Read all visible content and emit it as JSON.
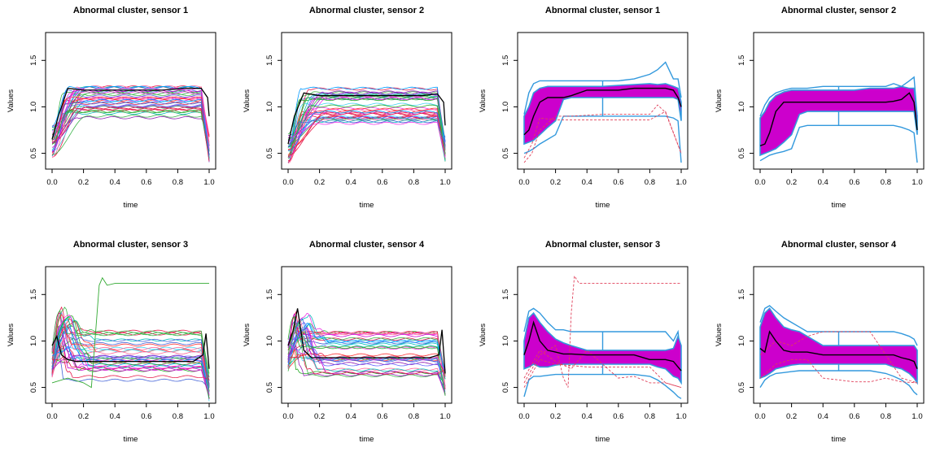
{
  "chart_data": [
    {
      "type": "line",
      "kind": "spaghetti",
      "title": "Abnormal cluster, sensor 1",
      "xlabel": "time",
      "ylabel": "Values",
      "xlim": [
        0,
        1
      ],
      "ylim": [
        0.33,
        1.8
      ],
      "xticks": [
        "0.0",
        "0.2",
        "0.4",
        "0.6",
        "0.8",
        "1.0"
      ],
      "yticks": [
        "0.5",
        "1.0",
        "1.5"
      ],
      "profile": {
        "start": 0.62,
        "level_min": 0.88,
        "level_max": 1.22,
        "rise": 0.15,
        "end": 0.55,
        "n": 34
      },
      "mean_line": {
        "x": [
          0,
          0.04,
          0.1,
          0.2,
          0.3,
          0.5,
          0.7,
          0.85,
          0.95,
          0.99,
          1.0
        ],
        "y": [
          0.65,
          0.9,
          1.2,
          1.18,
          1.18,
          1.18,
          1.18,
          1.2,
          1.2,
          1.1,
          0.9
        ]
      },
      "outliers": []
    },
    {
      "type": "line",
      "kind": "spaghetti",
      "title": "Abnormal cluster, sensor 2",
      "xlabel": "time",
      "ylabel": "Values",
      "xlim": [
        0,
        1
      ],
      "ylim": [
        0.33,
        1.8
      ],
      "xticks": [
        "0.0",
        "0.2",
        "0.4",
        "0.6",
        "0.8",
        "1.0"
      ],
      "yticks": [
        "0.5",
        "1.0",
        "1.5"
      ],
      "profile": {
        "start": 0.55,
        "level_min": 0.82,
        "level_max": 1.2,
        "rise": 0.17,
        "end": 0.55,
        "n": 34
      },
      "mean_line": {
        "x": [
          0,
          0.04,
          0.1,
          0.2,
          0.3,
          0.5,
          0.7,
          0.85,
          0.95,
          0.99,
          1.0
        ],
        "y": [
          0.6,
          0.9,
          1.15,
          1.12,
          1.12,
          1.12,
          1.12,
          1.12,
          1.14,
          1.05,
          0.8
        ]
      },
      "outliers": []
    },
    {
      "type": "line",
      "kind": "boxplot",
      "title": "Abnormal cluster, sensor 1",
      "xlabel": "time",
      "ylabel": "Values",
      "xlim": [
        0,
        1
      ],
      "ylim": [
        0.33,
        1.8
      ],
      "xticks": [
        "0.0",
        "0.2",
        "0.4",
        "0.6",
        "0.8",
        "1.0"
      ],
      "yticks": [
        "0.5",
        "1.0",
        "1.5"
      ],
      "x": [
        0,
        0.03,
        0.06,
        0.1,
        0.15,
        0.2,
        0.25,
        0.3,
        0.4,
        0.5,
        0.6,
        0.7,
        0.8,
        0.85,
        0.9,
        0.95,
        0.98,
        1.0
      ],
      "median": [
        0.7,
        0.75,
        0.9,
        1.05,
        1.1,
        1.1,
        1.1,
        1.12,
        1.18,
        1.18,
        1.18,
        1.2,
        1.2,
        1.2,
        1.2,
        1.18,
        1.1,
        1.0
      ],
      "box_low": [
        0.6,
        0.62,
        0.64,
        0.7,
        0.78,
        0.85,
        1.08,
        1.1,
        1.1,
        1.1,
        1.1,
        1.1,
        1.1,
        1.1,
        1.1,
        1.1,
        1.08,
        0.85
      ],
      "box_high": [
        0.9,
        1.0,
        1.15,
        1.2,
        1.22,
        1.22,
        1.22,
        1.22,
        1.22,
        1.22,
        1.23,
        1.24,
        1.25,
        1.24,
        1.25,
        1.22,
        1.2,
        1.05
      ],
      "fence_low": [
        0.5,
        0.52,
        0.55,
        0.6,
        0.65,
        0.7,
        0.9,
        0.9,
        0.9,
        0.9,
        0.9,
        0.9,
        0.9,
        0.9,
        0.9,
        0.88,
        0.85,
        0.4
      ],
      "fence_high": [
        0.92,
        1.15,
        1.25,
        1.28,
        1.28,
        1.28,
        1.28,
        1.28,
        1.28,
        1.28,
        1.28,
        1.3,
        1.35,
        1.4,
        1.48,
        1.3,
        1.3,
        1.1
      ],
      "whisker_x": 0.5,
      "outliers": [
        {
          "x": [
            0,
            0.05,
            0.1,
            0.2,
            0.3,
            0.5,
            0.7,
            0.8,
            0.9,
            1.0
          ],
          "y": [
            0.45,
            0.6,
            0.88,
            0.86,
            0.86,
            0.86,
            0.86,
            0.86,
            0.95,
            0.5
          ]
        },
        {
          "x": [
            0,
            0.05,
            0.1,
            0.2,
            0.3,
            0.5,
            0.7,
            0.8,
            0.85,
            0.9,
            1.0
          ],
          "y": [
            0.4,
            0.5,
            0.75,
            0.9,
            0.9,
            0.92,
            0.92,
            0.92,
            1.02,
            0.94,
            0.5
          ]
        }
      ]
    },
    {
      "type": "line",
      "kind": "boxplot",
      "title": "Abnormal cluster, sensor 2",
      "xlabel": "time",
      "ylabel": "Values",
      "xlim": [
        0,
        1
      ],
      "ylim": [
        0.33,
        1.8
      ],
      "xticks": [
        "0.0",
        "0.2",
        "0.4",
        "0.6",
        "0.8",
        "1.0"
      ],
      "yticks": [
        "0.5",
        "1.0",
        "1.5"
      ],
      "x": [
        0,
        0.03,
        0.06,
        0.1,
        0.15,
        0.2,
        0.25,
        0.3,
        0.4,
        0.5,
        0.6,
        0.7,
        0.8,
        0.85,
        0.9,
        0.95,
        0.98,
        1.0
      ],
      "median": [
        0.58,
        0.6,
        0.72,
        0.95,
        1.05,
        1.05,
        1.05,
        1.05,
        1.05,
        1.05,
        1.05,
        1.05,
        1.05,
        1.06,
        1.08,
        1.15,
        1.05,
        0.75
      ],
      "box_low": [
        0.48,
        0.5,
        0.52,
        0.55,
        0.62,
        0.7,
        0.92,
        0.95,
        0.95,
        0.95,
        0.95,
        0.95,
        0.95,
        0.95,
        0.95,
        0.95,
        0.95,
        0.7
      ],
      "box_high": [
        0.88,
        0.95,
        1.05,
        1.12,
        1.16,
        1.18,
        1.18,
        1.18,
        1.18,
        1.18,
        1.18,
        1.2,
        1.2,
        1.2,
        1.22,
        1.2,
        1.2,
        0.9
      ],
      "fence_low": [
        0.42,
        0.45,
        0.48,
        0.5,
        0.52,
        0.55,
        0.78,
        0.8,
        0.8,
        0.8,
        0.8,
        0.8,
        0.8,
        0.8,
        0.78,
        0.75,
        0.72,
        0.4
      ],
      "fence_high": [
        0.9,
        1.02,
        1.1,
        1.15,
        1.18,
        1.2,
        1.2,
        1.2,
        1.22,
        1.22,
        1.22,
        1.22,
        1.22,
        1.25,
        1.22,
        1.28,
        1.32,
        0.9
      ],
      "whisker_x": 0.5,
      "outliers": []
    },
    {
      "type": "line",
      "kind": "spaghetti",
      "title": "Abnormal cluster, sensor 3",
      "xlabel": "time",
      "ylabel": "Values",
      "xlim": [
        0,
        1
      ],
      "ylim": [
        0.33,
        1.8
      ],
      "xticks": [
        "0.0",
        "0.2",
        "0.4",
        "0.6",
        "0.8",
        "1.0"
      ],
      "yticks": [
        "0.5",
        "1.0",
        "1.5"
      ],
      "profile": {
        "start": 0.75,
        "level_min": 0.55,
        "level_max": 1.12,
        "rise": 0.08,
        "end": 0.5,
        "n": 34,
        "peak": 1.35
      },
      "mean_line": {
        "x": [
          0,
          0.03,
          0.06,
          0.1,
          0.15,
          0.2,
          0.3,
          0.5,
          0.7,
          0.9,
          0.96,
          0.98,
          1.0
        ],
        "y": [
          0.95,
          1.05,
          0.85,
          0.8,
          0.78,
          0.78,
          0.78,
          0.78,
          0.78,
          0.78,
          0.85,
          1.08,
          0.7
        ]
      },
      "outliers": [
        {
          "x": [
            0,
            0.1,
            0.2,
            0.25,
            0.3,
            0.32,
            0.35,
            0.4,
            0.5,
            0.6,
            1.0
          ],
          "y": [
            0.55,
            0.6,
            0.55,
            0.5,
            1.6,
            1.68,
            1.6,
            1.62,
            1.62,
            1.62,
            1.62
          ]
        }
      ]
    },
    {
      "type": "line",
      "kind": "spaghetti",
      "title": "Abnormal cluster, sensor 4",
      "xlabel": "time",
      "ylabel": "Values",
      "xlim": [
        0,
        1
      ],
      "ylim": [
        0.33,
        1.8
      ],
      "xticks": [
        "0.0",
        "0.2",
        "0.4",
        "0.6",
        "0.8",
        "1.0"
      ],
      "yticks": [
        "0.5",
        "1.0",
        "1.5"
      ],
      "profile": {
        "start": 0.85,
        "level_min": 0.62,
        "level_max": 1.1,
        "rise": 0.08,
        "end": 0.55,
        "n": 34,
        "peak": 1.3
      },
      "mean_line": {
        "x": [
          0,
          0.03,
          0.06,
          0.1,
          0.15,
          0.2,
          0.3,
          0.5,
          0.7,
          0.9,
          0.96,
          0.98,
          1.0
        ],
        "y": [
          0.95,
          1.1,
          1.35,
          0.9,
          0.82,
          0.82,
          0.82,
          0.82,
          0.82,
          0.82,
          0.85,
          1.12,
          0.65
        ]
      },
      "outliers": []
    },
    {
      "type": "line",
      "kind": "boxplot",
      "title": "Abnormal cluster, sensor 3",
      "xlabel": "time",
      "ylabel": "Values",
      "xlim": [
        0,
        1
      ],
      "ylim": [
        0.33,
        1.8
      ],
      "xticks": [
        "0.0",
        "0.2",
        "0.4",
        "0.6",
        "0.8",
        "1.0"
      ],
      "yticks": [
        "0.5",
        "1.0",
        "1.5"
      ],
      "x": [
        0,
        0.03,
        0.06,
        0.1,
        0.15,
        0.2,
        0.25,
        0.3,
        0.4,
        0.5,
        0.6,
        0.7,
        0.8,
        0.85,
        0.9,
        0.95,
        0.98,
        1.0
      ],
      "median": [
        0.85,
        1.0,
        1.2,
        1.0,
        0.9,
        0.88,
        0.86,
        0.86,
        0.85,
        0.85,
        0.85,
        0.85,
        0.8,
        0.8,
        0.8,
        0.78,
        0.72,
        0.68
      ],
      "box_low": [
        0.7,
        0.72,
        0.75,
        0.72,
        0.72,
        0.74,
        0.75,
        0.75,
        0.75,
        0.75,
        0.75,
        0.75,
        0.75,
        0.72,
        0.7,
        0.62,
        0.6,
        0.55
      ],
      "box_high": [
        1.0,
        1.25,
        1.3,
        1.2,
        1.1,
        1.02,
        0.98,
        0.95,
        0.9,
        0.9,
        0.9,
        0.9,
        0.9,
        0.9,
        0.9,
        0.92,
        1.05,
        0.95
      ],
      "fence_low": [
        0.4,
        0.58,
        0.62,
        0.62,
        0.63,
        0.64,
        0.64,
        0.64,
        0.64,
        0.64,
        0.64,
        0.64,
        0.62,
        0.58,
        0.52,
        0.45,
        0.4,
        0.38
      ],
      "fence_high": [
        1.1,
        1.32,
        1.35,
        1.3,
        1.2,
        1.12,
        1.12,
        1.1,
        1.1,
        1.1,
        1.1,
        1.1,
        1.1,
        1.1,
        1.1,
        1.0,
        1.1,
        0.8
      ],
      "whisker_x": 0.5,
      "outliers": [
        {
          "x": [
            0,
            0.1,
            0.2,
            0.25,
            0.28,
            0.3,
            0.32,
            0.35,
            0.4,
            0.5,
            0.7,
            0.9,
            1.0
          ],
          "y": [
            0.55,
            0.85,
            0.95,
            0.6,
            0.5,
            1.3,
            1.7,
            1.62,
            1.62,
            1.62,
            1.62,
            1.62,
            1.62
          ]
        },
        {
          "x": [
            0,
            0.1,
            0.2,
            0.3,
            0.4,
            0.5,
            0.6,
            0.7,
            0.8,
            0.9,
            1.0
          ],
          "y": [
            0.6,
            0.9,
            0.78,
            0.7,
            0.9,
            0.75,
            0.6,
            0.62,
            0.55,
            0.55,
            0.5
          ]
        },
        {
          "x": [
            0,
            0.1,
            0.2,
            0.4,
            0.6,
            0.8,
            0.9,
            1.0
          ],
          "y": [
            0.5,
            0.8,
            0.75,
            0.72,
            0.72,
            0.72,
            0.55,
            0.5
          ]
        }
      ]
    },
    {
      "type": "line",
      "kind": "boxplot",
      "title": "Abnormal cluster, sensor 4",
      "xlabel": "time",
      "ylabel": "Values",
      "xlim": [
        0,
        1
      ],
      "ylim": [
        0.33,
        1.8
      ],
      "xticks": [
        "0.0",
        "0.2",
        "0.4",
        "0.6",
        "0.8",
        "1.0"
      ],
      "yticks": [
        "0.5",
        "1.0",
        "1.5"
      ],
      "x": [
        0,
        0.03,
        0.06,
        0.1,
        0.15,
        0.2,
        0.25,
        0.3,
        0.4,
        0.5,
        0.6,
        0.7,
        0.8,
        0.85,
        0.9,
        0.95,
        0.98,
        1.0
      ],
      "median": [
        0.92,
        0.88,
        1.1,
        1.0,
        0.9,
        0.88,
        0.88,
        0.88,
        0.85,
        0.85,
        0.85,
        0.85,
        0.85,
        0.85,
        0.82,
        0.8,
        0.78,
        0.7
      ],
      "box_low": [
        0.6,
        0.62,
        0.65,
        0.7,
        0.72,
        0.74,
        0.75,
        0.75,
        0.75,
        0.75,
        0.75,
        0.75,
        0.75,
        0.72,
        0.7,
        0.65,
        0.6,
        0.55
      ],
      "box_high": [
        1.15,
        1.3,
        1.35,
        1.25,
        1.15,
        1.12,
        1.1,
        1.05,
        0.95,
        0.95,
        0.95,
        0.95,
        0.95,
        0.95,
        0.95,
        0.95,
        0.95,
        0.9
      ],
      "fence_low": [
        0.5,
        0.58,
        0.62,
        0.65,
        0.66,
        0.67,
        0.68,
        0.68,
        0.68,
        0.68,
        0.68,
        0.68,
        0.65,
        0.62,
        0.58,
        0.52,
        0.45,
        0.42
      ],
      "fence_high": [
        1.2,
        1.35,
        1.38,
        1.32,
        1.25,
        1.2,
        1.15,
        1.1,
        1.1,
        1.1,
        1.1,
        1.1,
        1.1,
        1.1,
        1.08,
        1.05,
        1.02,
        0.95
      ],
      "whisker_x": 0.5,
      "outliers": [
        {
          "x": [
            0,
            0.1,
            0.2,
            0.3,
            0.4,
            0.5,
            0.6,
            0.7,
            0.8,
            0.9,
            1.0
          ],
          "y": [
            0.85,
            1.0,
            0.95,
            1.05,
            1.1,
            1.1,
            1.1,
            1.1,
            0.85,
            0.6,
            0.55
          ]
        },
        {
          "x": [
            0,
            0.1,
            0.2,
            0.3,
            0.4,
            0.5,
            0.6,
            0.7,
            0.8,
            0.9,
            1.0
          ],
          "y": [
            0.6,
            0.75,
            0.8,
            0.8,
            0.6,
            0.58,
            0.56,
            0.56,
            0.6,
            0.56,
            0.55
          ]
        }
      ]
    }
  ],
  "colors": {
    "band": "#cc00cc",
    "fence": "#3399dd",
    "median": "#000000",
    "outlier": "#e0405a",
    "palette": [
      "#e6194b",
      "#3cb44b",
      "#4363d8",
      "#f032e6",
      "#42d4f4",
      "#911eb4",
      "#e6194b",
      "#ff6699",
      "#3cb44b",
      "#00bbbb",
      "#cc00cc",
      "#6666ff",
      "#ff3333",
      "#22aa22",
      "#0099ff"
    ]
  }
}
